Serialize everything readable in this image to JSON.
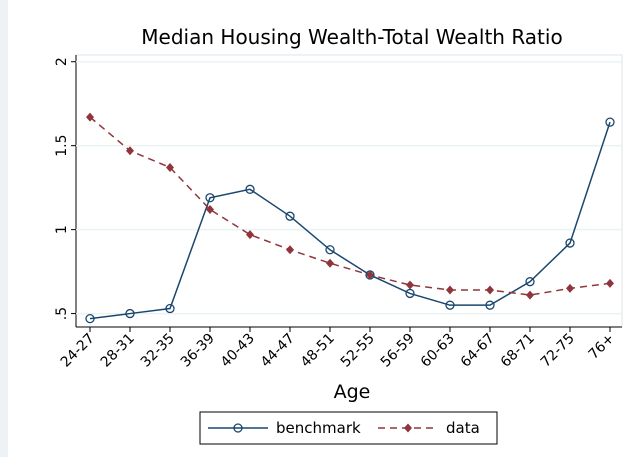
{
  "chart_data": {
    "type": "line",
    "title": "Median Housing Wealth-Total Wealth Ratio",
    "x_label": "Age",
    "categories": [
      "24-27",
      "28-31",
      "32-35",
      "36-39",
      "40-43",
      "44-47",
      "48-51",
      "52-55",
      "56-59",
      "60-63",
      "64-67",
      "68-71",
      "72-75",
      "76+"
    ],
    "series": [
      {
        "name": "benchmark",
        "color": "#1a476f",
        "marker": "circle",
        "dash": "solid",
        "values": [
          0.47,
          0.5,
          0.53,
          1.19,
          1.24,
          1.08,
          0.88,
          0.73,
          0.62,
          0.55,
          0.55,
          0.69,
          0.92,
          1.64
        ]
      },
      {
        "name": "data",
        "color": "#90353b",
        "marker": "diamond",
        "dash": "dashed",
        "values": [
          1.67,
          1.47,
          1.37,
          1.12,
          0.97,
          0.88,
          0.8,
          0.73,
          0.67,
          0.64,
          0.64,
          0.61,
          0.65,
          0.68
        ]
      }
    ],
    "ylim": [
      0.42,
      2.04
    ],
    "yticks": [
      {
        "value": 0.5,
        "label": ".5"
      },
      1,
      1.5,
      2
    ],
    "grid": true,
    "legend": "bottom"
  }
}
